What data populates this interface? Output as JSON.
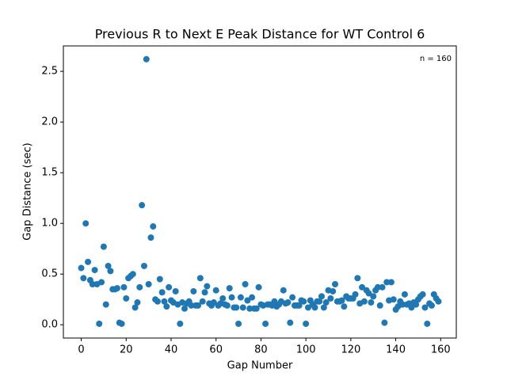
{
  "chart_data": {
    "type": "scatter",
    "title": "Previous R to Next E Peak Distance for WT Control 6",
    "xlabel": "Gap Number",
    "ylabel": "Gap Distance (sec)",
    "annotation": "n = 160",
    "color": "#1f77b4",
    "xlim": [
      -7.95,
      166.95
    ],
    "ylim": [
      -0.131,
      2.751
    ],
    "xticks": [
      0,
      20,
      40,
      60,
      80,
      100,
      120,
      140,
      160
    ],
    "yticks": [
      {
        "value": 0,
        "label": "0.0"
      },
      0.5,
      {
        "value": 1,
        "label": "1.0"
      },
      1.5,
      {
        "value": 2,
        "label": "2.0"
      },
      2.5
    ],
    "x": [
      0,
      1,
      2,
      3,
      4,
      5,
      6,
      7,
      8,
      9,
      10,
      11,
      12,
      13,
      14,
      15,
      16,
      17,
      18,
      19,
      20,
      21,
      22,
      23,
      24,
      25,
      26,
      27,
      28,
      29,
      30,
      31,
      32,
      33,
      34,
      35,
      36,
      37,
      38,
      39,
      40,
      41,
      42,
      43,
      44,
      45,
      46,
      47,
      48,
      49,
      50,
      51,
      52,
      53,
      54,
      55,
      56,
      57,
      58,
      59,
      60,
      61,
      62,
      63,
      64,
      65,
      66,
      67,
      68,
      69,
      70,
      71,
      72,
      73,
      74,
      75,
      76,
      77,
      78,
      79,
      80,
      81,
      82,
      83,
      84,
      85,
      86,
      87,
      88,
      89,
      90,
      91,
      92,
      93,
      94,
      95,
      96,
      97,
      98,
      99,
      100,
      101,
      102,
      103,
      104,
      105,
      106,
      107,
      108,
      109,
      110,
      111,
      112,
      113,
      114,
      115,
      116,
      117,
      118,
      119,
      120,
      121,
      122,
      123,
      124,
      125,
      126,
      127,
      128,
      129,
      130,
      131,
      132,
      133,
      134,
      135,
      136,
      137,
      138,
      139,
      140,
      141,
      142,
      143,
      144,
      145,
      146,
      147,
      148,
      149,
      150,
      151,
      152,
      153,
      154,
      155,
      156,
      157,
      158,
      159
    ],
    "values": [
      0.56,
      0.46,
      1.0,
      0.62,
      0.44,
      0.4,
      0.54,
      0.4,
      0.01,
      0.42,
      0.77,
      0.2,
      0.58,
      0.53,
      0.35,
      0.35,
      0.36,
      0.02,
      0.01,
      0.37,
      0.26,
      0.46,
      0.48,
      0.5,
      0.17,
      0.22,
      0.37,
      1.18,
      0.58,
      2.62,
      0.4,
      0.86,
      0.97,
      0.25,
      0.23,
      0.45,
      0.32,
      0.23,
      0.18,
      0.37,
      0.24,
      0.22,
      0.33,
      0.2,
      0.01,
      0.22,
      0.16,
      0.21,
      0.23,
      0.19,
      0.33,
      0.19,
      0.19,
      0.46,
      0.23,
      0.32,
      0.38,
      0.21,
      0.19,
      0.22,
      0.34,
      0.19,
      0.21,
      0.26,
      0.2,
      0.19,
      0.36,
      0.27,
      0.17,
      0.17,
      0.01,
      0.27,
      0.17,
      0.4,
      0.24,
      0.16,
      0.27,
      0.16,
      0.16,
      0.37,
      0.2,
      0.19,
      0.01,
      0.2,
      0.2,
      0.19,
      0.23,
      0.18,
      0.2,
      0.23,
      0.34,
      0.21,
      0.22,
      0.02,
      0.27,
      0.19,
      0.19,
      0.19,
      0.24,
      0.23,
      0.01,
      0.17,
      0.24,
      0.2,
      0.17,
      0.23,
      0.23,
      0.28,
      0.17,
      0.22,
      0.34,
      0.26,
      0.33,
      0.4,
      0.23,
      0.23,
      0.24,
      0.18,
      0.28,
      0.26,
      0.26,
      0.26,
      0.3,
      0.46,
      0.21,
      0.37,
      0.23,
      0.34,
      0.31,
      0.22,
      0.28,
      0.34,
      0.37,
      0.19,
      0.37,
      0.02,
      0.42,
      0.24,
      0.42,
      0.25,
      0.15,
      0.18,
      0.23,
      0.2,
      0.3,
      0.2,
      0.21,
      0.17,
      0.22,
      0.2,
      0.25,
      0.28,
      0.3,
      0.17,
      0.01,
      0.21,
      0.19,
      0.3,
      0.26,
      0.23
    ]
  }
}
